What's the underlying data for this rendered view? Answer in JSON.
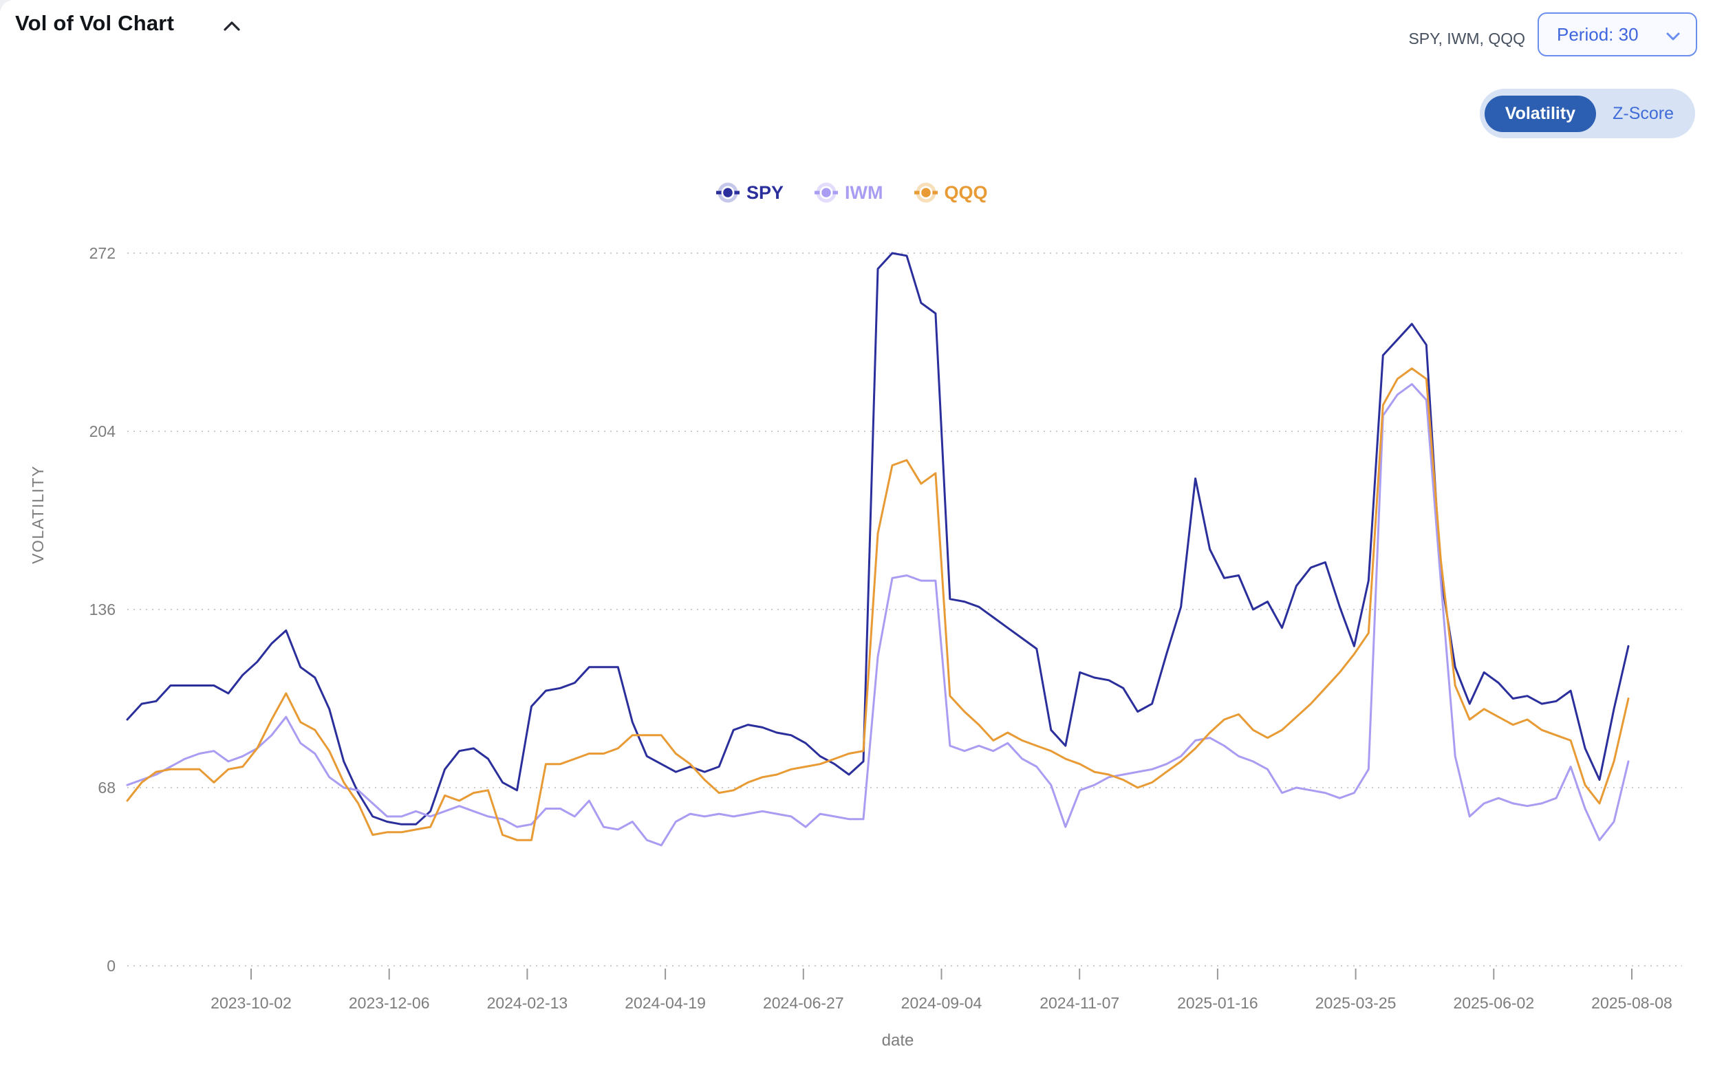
{
  "header": {
    "title": "Vol of Vol Chart",
    "tickers": "SPY, IWM, QQQ",
    "period_label": "Period: 30"
  },
  "toggle": {
    "options": [
      "Volatility",
      "Z-Score"
    ],
    "active": "Volatility",
    "active_bg": "#2c5fb1",
    "container_bg": "#d7e2f5"
  },
  "legend": {
    "fade_colors": {
      "SPY": "#c5c8e8",
      "IWM": "#e3ddfb",
      "QQQ": "#f7dfba"
    }
  },
  "chart_data": {
    "type": "line",
    "title": "",
    "xlabel": "date",
    "ylabel": "VOLATILITY",
    "ylim": [
      0,
      272
    ],
    "yticks": [
      0,
      68,
      136,
      204,
      272
    ],
    "grid": "dotted-horizontal",
    "legend_position": "top-center",
    "xtick_labels": [
      "2023-10-02",
      "2023-12-06",
      "2024-02-13",
      "2024-04-19",
      "2024-06-27",
      "2024-09-04",
      "2024-11-07",
      "2025-01-16",
      "2025-03-25",
      "2025-06-02",
      "2025-08-08"
    ],
    "x": [
      "2023-08-07",
      "2023-08-14",
      "2023-08-21",
      "2023-08-28",
      "2023-09-04",
      "2023-09-11",
      "2023-09-18",
      "2023-09-25",
      "2023-10-02",
      "2023-10-09",
      "2023-10-16",
      "2023-10-23",
      "2023-10-30",
      "2023-11-06",
      "2023-11-13",
      "2023-11-20",
      "2023-11-27",
      "2023-12-04",
      "2023-12-11",
      "2023-12-18",
      "2023-12-25",
      "2024-01-01",
      "2024-01-08",
      "2024-01-15",
      "2024-01-22",
      "2024-01-29",
      "2024-02-05",
      "2024-02-12",
      "2024-02-19",
      "2024-02-26",
      "2024-03-04",
      "2024-03-11",
      "2024-03-18",
      "2024-03-25",
      "2024-04-01",
      "2024-04-08",
      "2024-04-15",
      "2024-04-22",
      "2024-04-29",
      "2024-05-06",
      "2024-05-13",
      "2024-05-20",
      "2024-05-27",
      "2024-06-03",
      "2024-06-10",
      "2024-06-17",
      "2024-06-24",
      "2024-07-01",
      "2024-07-08",
      "2024-07-15",
      "2024-07-22",
      "2024-07-29",
      "2024-08-05",
      "2024-08-12",
      "2024-08-19",
      "2024-08-26",
      "2024-09-02",
      "2024-09-09",
      "2024-09-16",
      "2024-09-23",
      "2024-09-30",
      "2024-10-07",
      "2024-10-14",
      "2024-10-21",
      "2024-10-28",
      "2024-11-04",
      "2024-11-11",
      "2024-11-18",
      "2024-11-25",
      "2024-12-02",
      "2024-12-09",
      "2024-12-16",
      "2024-12-23",
      "2024-12-30",
      "2025-01-06",
      "2025-01-13",
      "2025-01-20",
      "2025-01-27",
      "2025-02-03",
      "2025-02-10",
      "2025-02-17",
      "2025-02-24",
      "2025-03-03",
      "2025-03-10",
      "2025-03-17",
      "2025-03-24",
      "2025-03-31",
      "2025-04-07",
      "2025-04-14",
      "2025-04-21",
      "2025-04-28",
      "2025-05-05",
      "2025-05-12",
      "2025-05-19",
      "2025-05-26",
      "2025-06-02",
      "2025-06-09",
      "2025-06-16",
      "2025-06-23",
      "2025-06-30",
      "2025-07-07",
      "2025-07-14",
      "2025-07-21",
      "2025-07-28",
      "2025-08-04"
    ],
    "series": [
      {
        "name": "SPY",
        "color": "#2b2f9c",
        "values": [
          94,
          100,
          101,
          107,
          107,
          107,
          107,
          104,
          111,
          116,
          123,
          128,
          114,
          110,
          98,
          78,
          66,
          57,
          55,
          54,
          54,
          59,
          75,
          82,
          83,
          79,
          70,
          67,
          99,
          105,
          106,
          108,
          114,
          114,
          114,
          93,
          80,
          77,
          74,
          76,
          74,
          76,
          90,
          92,
          91,
          89,
          88,
          85,
          80,
          77,
          73,
          78,
          266,
          272,
          271,
          253,
          249,
          140,
          139,
          137,
          133,
          129,
          125,
          121,
          90,
          84,
          112,
          110,
          109,
          106,
          97,
          100,
          119,
          137,
          186,
          159,
          148,
          149,
          136,
          139,
          129,
          145,
          152,
          154,
          137,
          122,
          147,
          233,
          239,
          245,
          237,
          149,
          114,
          100,
          112,
          108,
          102,
          103,
          100,
          101,
          105,
          83,
          71,
          98,
          122
        ]
      },
      {
        "name": "IWM",
        "color": "#a89df2",
        "values": [
          69,
          71,
          73,
          76,
          79,
          81,
          82,
          78,
          80,
          83,
          88,
          95,
          85,
          81,
          72,
          68,
          67,
          62,
          57,
          57,
          59,
          57,
          59,
          61,
          59,
          57,
          56,
          53,
          54,
          60,
          60,
          57,
          63,
          53,
          52,
          55,
          48,
          46,
          55,
          58,
          57,
          58,
          57,
          58,
          59,
          58,
          57,
          53,
          58,
          57,
          56,
          56,
          118,
          148,
          149,
          147,
          147,
          84,
          82,
          84,
          82,
          85,
          79,
          76,
          69,
          53,
          67,
          69,
          72,
          73,
          74,
          75,
          77,
          80,
          86,
          87,
          84,
          80,
          78,
          75,
          66,
          68,
          67,
          66,
          64,
          66,
          75,
          210,
          218,
          222,
          216,
          147,
          80,
          57,
          62,
          64,
          62,
          61,
          62,
          64,
          76,
          60,
          48,
          55,
          78
        ]
      },
      {
        "name": "QQQ",
        "color": "#e89b35",
        "values": [
          63,
          70,
          74,
          75,
          75,
          75,
          70,
          75,
          76,
          83,
          94,
          104,
          93,
          90,
          82,
          70,
          62,
          50,
          51,
          51,
          52,
          53,
          65,
          63,
          66,
          67,
          50,
          48,
          48,
          77,
          77,
          79,
          81,
          81,
          83,
          88,
          88,
          88,
          81,
          77,
          71,
          66,
          67,
          70,
          72,
          73,
          75,
          76,
          77,
          79,
          81,
          82,
          165,
          191,
          193,
          184,
          188,
          103,
          97,
          92,
          86,
          89,
          86,
          84,
          82,
          79,
          77,
          74,
          73,
          71,
          68,
          70,
          74,
          78,
          83,
          89,
          94,
          96,
          90,
          87,
          90,
          95,
          100,
          106,
          112,
          119,
          127,
          214,
          224,
          228,
          224,
          155,
          107,
          94,
          98,
          95,
          92,
          94,
          90,
          88,
          86,
          69,
          62,
          78,
          102
        ]
      }
    ],
    "axis_text_color": "#7d7d7d",
    "gridline_color": "#cccccc"
  }
}
